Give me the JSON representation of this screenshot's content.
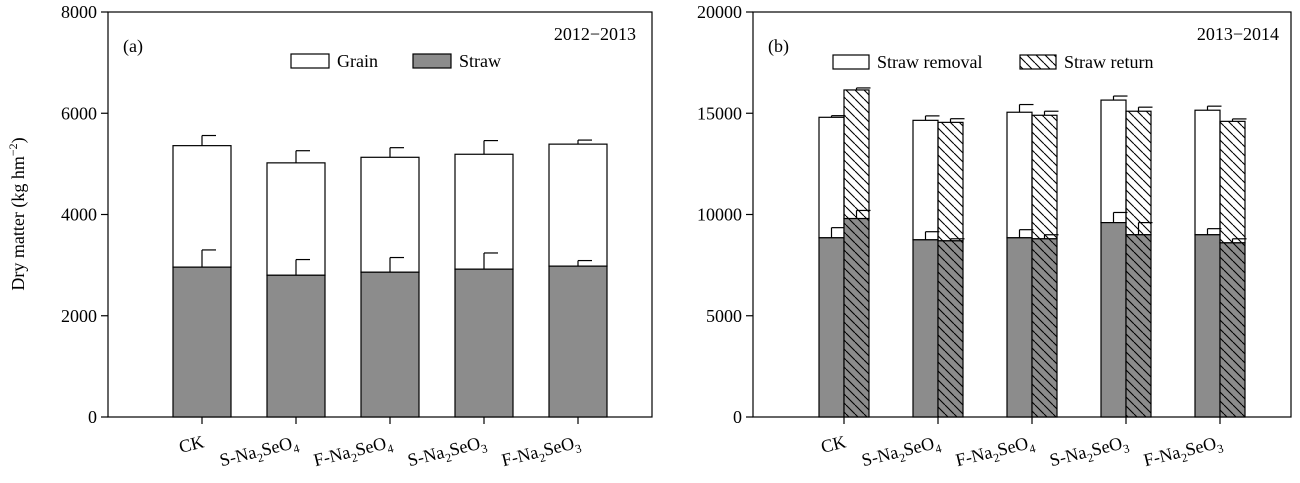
{
  "chart_data": [
    {
      "type": "bar",
      "panel_label": "(a)",
      "period": "2012−2013",
      "ylabel": "Dry matter (kg hm⁻²)",
      "ylim": [
        0,
        8000
      ],
      "yticks": [
        0,
        2000,
        4000,
        6000,
        8000
      ],
      "categories": [
        "CK",
        "S-Na2SeO4",
        "F-Na2SeO4",
        "S-Na2SeO3",
        "F-Na2SeO3"
      ],
      "stacked": true,
      "legend": [
        "Grain",
        "Straw"
      ],
      "legend_position": "top",
      "series": [
        {
          "name": "Straw",
          "color": "#8c8c8c",
          "values": [
            2960,
            2800,
            2860,
            2920,
            2980
          ],
          "errors": [
            340,
            310,
            290,
            320,
            110
          ]
        },
        {
          "name": "Grain",
          "color": "#ffffff",
          "values": [
            2400,
            2220,
            2270,
            2270,
            2410
          ],
          "errors": [
            200,
            240,
            190,
            270,
            80
          ],
          "totals": [
            5360,
            5020,
            5130,
            5190,
            5390
          ]
        }
      ]
    },
    {
      "type": "bar",
      "panel_label": "(b)",
      "period": "2013−2014",
      "ylabel": "",
      "ylim": [
        0,
        20000
      ],
      "yticks": [
        0,
        5000,
        10000,
        15000,
        20000
      ],
      "categories": [
        "CK",
        "S-Na2SeO4",
        "F-Na2SeO4",
        "S-Na2SeO3",
        "F-Na2SeO3"
      ],
      "stacked": true,
      "grouped": true,
      "legend": [
        "Straw removal",
        "Straw return"
      ],
      "legend_position": "top",
      "groups": [
        {
          "name": "Straw removal",
          "pattern": "open",
          "bottom": [
            8850,
            8750,
            8850,
            9600,
            9000
          ],
          "bottom_errors": [
            500,
            400,
            400,
            500,
            300
          ],
          "total": [
            14800,
            14650,
            15050,
            15650,
            15150
          ],
          "total_errors": [
            80,
            220,
            380,
            200,
            200
          ]
        },
        {
          "name": "Straw return",
          "pattern": "hatched",
          "bottom": [
            9800,
            8700,
            8800,
            9000,
            8600
          ],
          "bottom_errors": [
            400,
            100,
            200,
            600,
            200
          ],
          "total": [
            16150,
            14550,
            14900,
            15100,
            14600
          ],
          "total_errors": [
            100,
            180,
            200,
            200,
            120
          ]
        }
      ]
    }
  ]
}
